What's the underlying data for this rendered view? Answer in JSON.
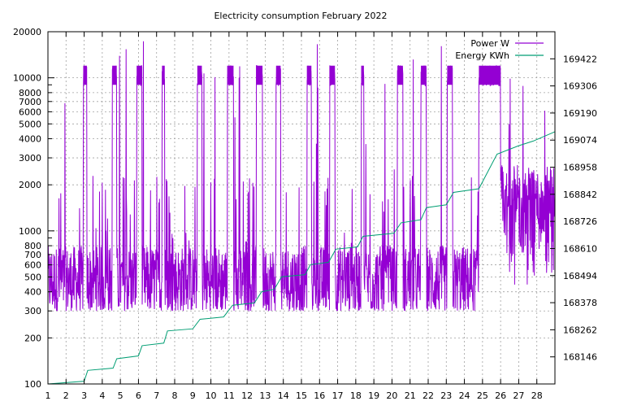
{
  "chart_data": {
    "type": "line",
    "title": "Electricity consumption February 2022",
    "x_ticks": [
      "1",
      "2",
      "3",
      "4",
      "5",
      "6",
      "7",
      "8",
      "9",
      "10",
      "11",
      "12",
      "13",
      "14",
      "15",
      "16",
      "17",
      "18",
      "19",
      "20",
      "21",
      "22",
      "23",
      "24",
      "25",
      "26",
      "27",
      "28"
    ],
    "xlim": [
      1,
      29
    ],
    "y_left": {
      "scale": "log",
      "ylim": [
        100,
        20000
      ],
      "ticks": [
        100,
        200,
        300,
        400,
        500,
        600,
        700,
        800,
        1000,
        2000,
        3000,
        4000,
        5000,
        6000,
        7000,
        8000,
        10000,
        20000
      ],
      "tick_labels": [
        "100",
        "200",
        "300",
        "400",
        "500",
        "600",
        "700",
        "800",
        "1000",
        "2000",
        "3000",
        "4000",
        "5000",
        "6000",
        "7000",
        "8000",
        "10000",
        "20000"
      ]
    },
    "y_right": {
      "scale": "linear",
      "ylim": [
        168030,
        169538
      ],
      "ticks": [
        168146,
        168262,
        168378,
        168494,
        168610,
        168726,
        168842,
        168958,
        169074,
        169190,
        169306,
        169422
      ],
      "tick_labels": [
        "168146",
        "168262",
        "168378",
        "168494",
        "168610",
        "168726",
        "168842",
        "168958",
        "169074",
        "169190",
        "169306",
        "169422"
      ]
    },
    "grid": true,
    "legend_position": "top-right",
    "series": [
      {
        "name": "Power W",
        "axis": "left",
        "color": "#9400d3",
        "baseline_range_w": [
          300,
          800
        ],
        "heater_cycle_level_w": 10000,
        "spike_max_w": 18000,
        "heater_cycles": [
          {
            "start": 2.95,
            "end": 3.15
          },
          {
            "start": 4.55,
            "end": 4.8
          },
          {
            "start": 5.9,
            "end": 6.2
          },
          {
            "start": 7.3,
            "end": 7.45
          },
          {
            "start": 9.25,
            "end": 9.5
          },
          {
            "start": 10.9,
            "end": 11.25
          },
          {
            "start": 12.5,
            "end": 12.85
          },
          {
            "start": 13.6,
            "end": 13.85
          },
          {
            "start": 15.3,
            "end": 15.55
          },
          {
            "start": 16.55,
            "end": 16.85
          },
          {
            "start": 18.3,
            "end": 18.45
          },
          {
            "start": 20.3,
            "end": 20.6
          },
          {
            "start": 21.6,
            "end": 21.9
          },
          {
            "start": 23.05,
            "end": 23.35
          },
          {
            "start": 24.8,
            "end": 26.0
          }
        ]
      },
      {
        "name": "Energy KWh",
        "axis": "right",
        "color": "#009e73",
        "points": [
          [
            1.0,
            168030
          ],
          [
            3.0,
            168042
          ],
          [
            3.2,
            168088
          ],
          [
            4.6,
            168098
          ],
          [
            4.8,
            168138
          ],
          [
            6.0,
            168150
          ],
          [
            6.2,
            168194
          ],
          [
            7.4,
            168205
          ],
          [
            7.6,
            168257
          ],
          [
            9.0,
            168266
          ],
          [
            9.4,
            168307
          ],
          [
            10.7,
            168317
          ],
          [
            11.2,
            168367
          ],
          [
            12.4,
            168377
          ],
          [
            12.8,
            168425
          ],
          [
            13.5,
            168435
          ],
          [
            13.9,
            168489
          ],
          [
            15.2,
            168498
          ],
          [
            15.5,
            168541
          ],
          [
            16.5,
            168551
          ],
          [
            16.9,
            168607
          ],
          [
            18.1,
            168617
          ],
          [
            18.4,
            168662
          ],
          [
            20.1,
            168675
          ],
          [
            20.5,
            168720
          ],
          [
            21.6,
            168733
          ],
          [
            21.9,
            168785
          ],
          [
            23.0,
            168797
          ],
          [
            23.4,
            168850
          ],
          [
            24.8,
            168866
          ],
          [
            25.8,
            169014
          ],
          [
            27.0,
            169050
          ],
          [
            27.8,
            169070
          ],
          [
            29.0,
            169110
          ]
        ]
      }
    ]
  }
}
